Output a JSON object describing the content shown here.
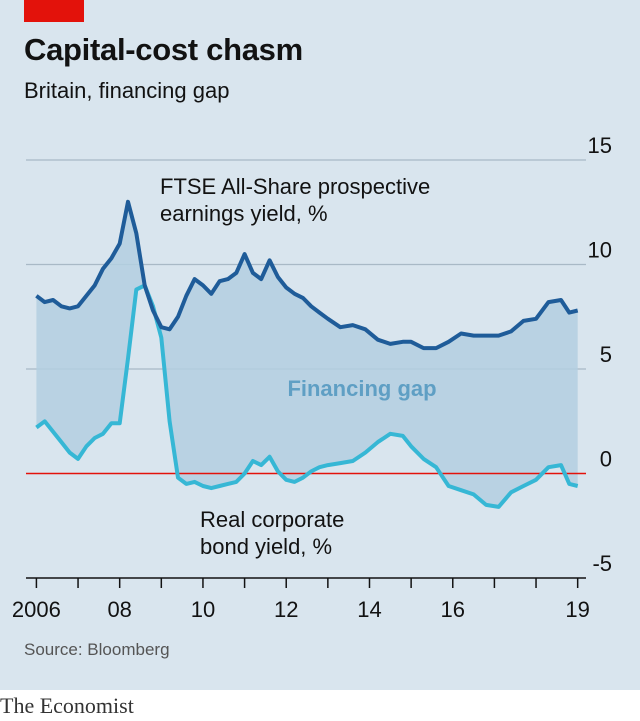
{
  "header": {
    "title": "Capital-cost chasm",
    "subtitle": "Britain, financing gap"
  },
  "footer": {
    "source": "Source: Bloomberg",
    "brand": "The Economist"
  },
  "colors": {
    "background": "#d9e5ee",
    "accent_red": "#e3120b",
    "ftse_line": "#1f5c99",
    "bond_line": "#36b7d5",
    "gap_fill": "#b3cfe0",
    "gap_label": "#5f9fc4",
    "grid": "#a9b9c6",
    "zero_line": "#e3120b"
  },
  "chart_data": {
    "type": "line",
    "title": "Capital-cost chasm",
    "subtitle": "Britain, financing gap",
    "xlabel": "",
    "ylabel": "",
    "ylim": [
      -5,
      15
    ],
    "yticks": [
      15,
      10,
      5,
      0,
      -5
    ],
    "ytick_labels": [
      "15",
      "10",
      "5",
      "0",
      "-5"
    ],
    "xlim": [
      2005.75,
      2019.2
    ],
    "xticks": [
      2006,
      2008,
      2010,
      2012,
      2014,
      2016,
      2019
    ],
    "xtick_labels": [
      "2006",
      "08",
      "10",
      "12",
      "14",
      "16",
      "19"
    ],
    "grid": true,
    "legend": "none",
    "annotations": [
      {
        "text_lines": [
          "FTSE All-Share prospective",
          "earnings yield, %"
        ]
      },
      {
        "text": "Financing gap"
      },
      {
        "text_lines": [
          "Real corporate",
          "bond yield, %"
        ]
      }
    ],
    "series": [
      {
        "name": "FTSE All-Share prospective earnings yield, %",
        "x": [
          2006.0,
          2006.2,
          2006.4,
          2006.6,
          2006.8,
          2007.0,
          2007.2,
          2007.4,
          2007.6,
          2007.8,
          2008.0,
          2008.2,
          2008.4,
          2008.6,
          2008.8,
          2009.0,
          2009.2,
          2009.4,
          2009.6,
          2009.8,
          2010.0,
          2010.2,
          2010.4,
          2010.6,
          2010.8,
          2011.0,
          2011.2,
          2011.4,
          2011.6,
          2011.8,
          2012.0,
          2012.2,
          2012.4,
          2012.6,
          2012.8,
          2013.0,
          2013.3,
          2013.6,
          2013.9,
          2014.2,
          2014.5,
          2014.8,
          2015.0,
          2015.3,
          2015.6,
          2015.9,
          2016.2,
          2016.5,
          2016.8,
          2017.1,
          2017.4,
          2017.7,
          2018.0,
          2018.3,
          2018.6,
          2018.8,
          2019.0
        ],
        "values": [
          8.5,
          8.2,
          8.3,
          8.0,
          7.9,
          8.0,
          8.5,
          9.0,
          9.8,
          10.3,
          11.0,
          13.0,
          11.5,
          9.0,
          7.8,
          7.0,
          6.9,
          7.5,
          8.5,
          9.3,
          9.0,
          8.6,
          9.2,
          9.3,
          9.6,
          10.5,
          9.6,
          9.3,
          10.2,
          9.4,
          8.9,
          8.6,
          8.4,
          8.0,
          7.7,
          7.4,
          7.0,
          7.1,
          6.9,
          6.4,
          6.2,
          6.3,
          6.3,
          6.0,
          6.0,
          6.3,
          6.7,
          6.6,
          6.6,
          6.6,
          6.8,
          7.3,
          7.4,
          8.2,
          8.3,
          7.7,
          7.8
        ]
      },
      {
        "name": "Real corporate bond yield, %",
        "x": [
          2006.0,
          2006.2,
          2006.4,
          2006.6,
          2006.8,
          2007.0,
          2007.2,
          2007.4,
          2007.6,
          2007.8,
          2008.0,
          2008.2,
          2008.4,
          2008.6,
          2008.8,
          2009.0,
          2009.2,
          2009.4,
          2009.6,
          2009.8,
          2010.0,
          2010.2,
          2010.4,
          2010.6,
          2010.8,
          2011.0,
          2011.2,
          2011.4,
          2011.6,
          2011.8,
          2012.0,
          2012.2,
          2012.4,
          2012.6,
          2012.8,
          2013.0,
          2013.3,
          2013.6,
          2013.9,
          2014.2,
          2014.5,
          2014.8,
          2015.0,
          2015.3,
          2015.6,
          2015.9,
          2016.2,
          2016.5,
          2016.8,
          2017.1,
          2017.4,
          2017.7,
          2018.0,
          2018.3,
          2018.6,
          2018.8,
          2019.0
        ],
        "values": [
          2.2,
          2.5,
          2.0,
          1.5,
          1.0,
          0.7,
          1.3,
          1.7,
          1.9,
          2.4,
          2.4,
          5.5,
          8.8,
          9.0,
          8.0,
          6.5,
          2.5,
          -0.2,
          -0.5,
          -0.4,
          -0.6,
          -0.7,
          -0.6,
          -0.5,
          -0.4,
          0.0,
          0.6,
          0.4,
          0.8,
          0.1,
          -0.3,
          -0.4,
          -0.2,
          0.1,
          0.3,
          0.4,
          0.5,
          0.6,
          1.0,
          1.5,
          1.9,
          1.8,
          1.3,
          0.7,
          0.3,
          -0.6,
          -0.8,
          -1.0,
          -1.5,
          -1.6,
          -0.9,
          -0.6,
          -0.3,
          0.3,
          0.4,
          -0.5,
          -0.6
        ]
      }
    ]
  }
}
